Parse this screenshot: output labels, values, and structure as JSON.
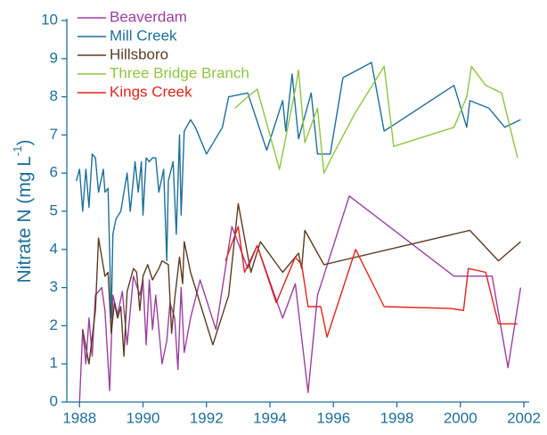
{
  "chart_data": {
    "type": "line",
    "y_label": {
      "text": "Nitrate N (mg L",
      "superscript": "-1",
      "close": ")"
    },
    "xlim": [
      1987.6,
      2002
    ],
    "xticks": [
      1988,
      1990,
      1992,
      1994,
      1996,
      1998,
      2000,
      2002
    ],
    "ylim": [
      0,
      10
    ],
    "yticks": [
      0,
      1,
      2,
      3,
      4,
      5,
      6,
      7,
      8,
      9,
      10
    ],
    "legend": "upper left",
    "series": [
      {
        "name": "Beaverdam",
        "color": "#9b3fa0",
        "x": [
          1988.0,
          1988.1,
          1988.2,
          1988.3,
          1988.4,
          1988.5,
          1988.7,
          1988.8,
          1988.95,
          1989.05,
          1989.2,
          1989.35,
          1989.5,
          1989.7,
          1989.9,
          1990.0,
          1990.1,
          1990.2,
          1990.3,
          1990.4,
          1990.6,
          1990.75,
          1990.85,
          1991.0,
          1991.1,
          1991.2,
          1991.3,
          1991.5,
          1991.8,
          1992.3,
          1992.8,
          1993.3,
          1993.6,
          1994.4,
          1994.8,
          1995.2,
          1995.5,
          1996.5,
          1999.8,
          2000.6,
          2001.0,
          2001.5,
          2001.9
        ],
        "values": [
          0,
          1.9,
          1.0,
          2.2,
          1.2,
          2.8,
          3.0,
          2.4,
          0.3,
          2.8,
          2.3,
          2.9,
          1.5,
          3.3,
          2.8,
          3.2,
          1.5,
          3.2,
          1.9,
          2.8,
          1.0,
          1.6,
          2.6,
          2.2,
          0.85,
          3.0,
          1.3,
          2.2,
          3.2,
          1.9,
          4.6,
          3.5,
          4.1,
          2.2,
          3.1,
          0.25,
          2.8,
          5.4,
          3.3,
          3.3,
          3.3,
          0.9,
          3.0
        ]
      },
      {
        "name": "Mill Creek",
        "color": "#1d6f9a",
        "x": [
          1987.9,
          1988.0,
          1988.1,
          1988.2,
          1988.3,
          1988.4,
          1988.5,
          1988.6,
          1988.75,
          1988.8,
          1988.9,
          1989.0,
          1989.05,
          1989.15,
          1989.3,
          1989.5,
          1989.6,
          1989.75,
          1989.85,
          1989.95,
          1990.0,
          1990.1,
          1990.2,
          1990.3,
          1990.4,
          1990.5,
          1990.65,
          1990.75,
          1990.8,
          1990.95,
          1991.05,
          1991.15,
          1991.2,
          1991.3,
          1991.5,
          1991.65,
          1992.0,
          1992.5,
          1992.7,
          1993.3,
          1993.9,
          1994.4,
          1994.5,
          1994.7,
          1994.9,
          1995.3,
          1995.5,
          1995.9,
          1996.3,
          1997.2,
          1997.6,
          1999.8,
          2000.2,
          2000.3,
          2000.9,
          2001.4,
          2001.9
        ],
        "values": [
          5.8,
          6.1,
          5.0,
          6.1,
          5.1,
          6.5,
          6.4,
          5.5,
          6.1,
          5.5,
          5.6,
          2.2,
          4.4,
          4.8,
          5.0,
          6.0,
          5.0,
          6.3,
          5.5,
          6.3,
          4.9,
          6.4,
          6.3,
          6.4,
          6.4,
          5.5,
          6.1,
          3.7,
          5.8,
          6.3,
          4.4,
          7.0,
          4.9,
          7.1,
          7.4,
          7.2,
          6.5,
          7.2,
          8.0,
          8.1,
          6.6,
          7.9,
          7.1,
          8.6,
          6.9,
          8.1,
          6.5,
          6.5,
          8.5,
          8.9,
          7.1,
          8.3,
          7.2,
          7.9,
          7.7,
          7.2,
          7.4
        ]
      },
      {
        "name": "Hillsboro",
        "color": "#5b3c22",
        "x": [
          1988.1,
          1988.3,
          1988.5,
          1988.6,
          1988.8,
          1988.9,
          1989.0,
          1989.1,
          1989.2,
          1989.3,
          1989.4,
          1989.5,
          1989.7,
          1989.8,
          1989.9,
          1990.0,
          1990.15,
          1990.3,
          1990.5,
          1990.6,
          1990.8,
          1990.9,
          1991.0,
          1991.15,
          1991.25,
          1991.3,
          1991.5,
          1992.2,
          1992.7,
          1993.0,
          1993.4,
          1993.7,
          1994.4,
          1994.9,
          1995.0,
          1995.1,
          1995.7,
          2000.3,
          2001.2,
          2001.9
        ],
        "values": [
          1.9,
          1.0,
          2.4,
          4.3,
          3.3,
          3.4,
          1.8,
          2.6,
          2.2,
          2.5,
          1.2,
          2.9,
          3.5,
          3.4,
          2.4,
          3.3,
          3.6,
          3.2,
          3.5,
          3.7,
          3.6,
          1.8,
          2.7,
          3.8,
          3.1,
          4.2,
          3.4,
          1.5,
          2.8,
          5.2,
          3.4,
          4.2,
          3.4,
          3.9,
          3.5,
          4.5,
          3.6,
          4.5,
          3.7,
          4.2
        ]
      },
      {
        "name": "Three Bridge Branch",
        "color": "#8dc63f",
        "x": [
          1992.9,
          1993.3,
          1993.6,
          1994.3,
          1994.8,
          1994.9,
          1995.1,
          1995.5,
          1995.7,
          1996.0,
          1996.7,
          1997.6,
          1997.9,
          1999.8,
          2000.2,
          2000.35,
          2000.8,
          2001.3,
          2001.8
        ],
        "values": [
          7.7,
          8.0,
          8.2,
          6.1,
          8.2,
          8.7,
          6.8,
          7.7,
          6.0,
          6.5,
          7.6,
          8.8,
          6.7,
          7.2,
          8.0,
          8.8,
          8.3,
          8.1,
          6.4
        ]
      },
      {
        "name": "Kings Creek",
        "color": "#e2231a",
        "x": [
          1992.6,
          1993.0,
          1993.2,
          1993.6,
          1994.2,
          1994.8,
          1995.0,
          1995.2,
          1995.6,
          1995.8,
          1996.7,
          1997.6,
          1999.7,
          2000.1,
          2000.25,
          2000.8,
          2001.2,
          2001.8
        ],
        "values": [
          3.7,
          4.6,
          3.4,
          4.1,
          2.6,
          3.8,
          3.6,
          2.5,
          2.5,
          1.7,
          4.0,
          2.5,
          2.45,
          2.4,
          3.5,
          3.4,
          2.05,
          2.05
        ]
      }
    ]
  }
}
